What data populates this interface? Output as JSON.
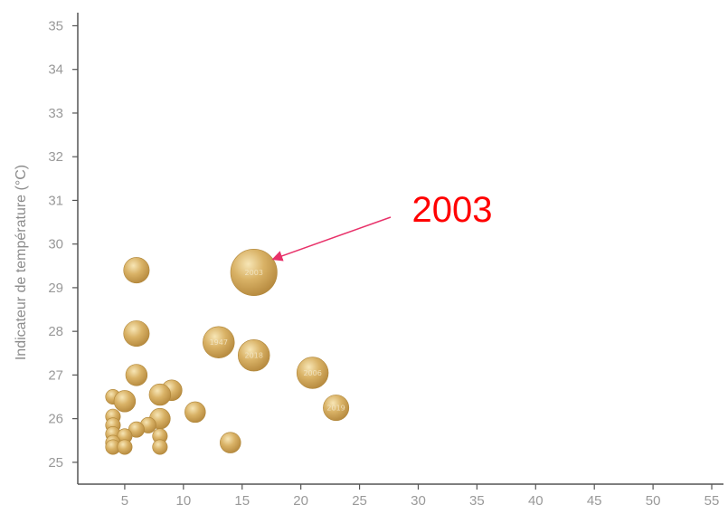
{
  "chart_data": {
    "type": "scatter",
    "variant": "bubble",
    "ylabel": "Indicateur de température (°C)",
    "xlabel": "",
    "xlim": [
      1,
      56
    ],
    "ylim": [
      24.5,
      35.3
    ],
    "xticks": [
      "5",
      "10",
      "15",
      "20",
      "25",
      "30",
      "35",
      "40",
      "45",
      "50",
      "55"
    ],
    "yticks": [
      "25",
      "26",
      "27",
      "28",
      "29",
      "30",
      "31",
      "32",
      "33",
      "34",
      "35"
    ],
    "grid": false,
    "bubble_color": "#c9a04e",
    "points": [
      {
        "x": 6.0,
        "y": 29.4,
        "size": 2.0,
        "label": ""
      },
      {
        "x": 16.0,
        "y": 29.35,
        "size": 4.5,
        "label": "2003"
      },
      {
        "x": 6.0,
        "y": 27.95,
        "size": 2.0,
        "label": ""
      },
      {
        "x": 13.0,
        "y": 27.75,
        "size": 2.7,
        "label": "1947"
      },
      {
        "x": 16.0,
        "y": 27.45,
        "size": 2.7,
        "label": "2018"
      },
      {
        "x": 21.0,
        "y": 27.05,
        "size": 2.7,
        "label": "2006"
      },
      {
        "x": 6.0,
        "y": 27.0,
        "size": 1.5,
        "label": ""
      },
      {
        "x": 9.0,
        "y": 26.65,
        "size": 1.4,
        "label": ""
      },
      {
        "x": 8.0,
        "y": 26.55,
        "size": 1.5,
        "label": ""
      },
      {
        "x": 4.0,
        "y": 26.5,
        "size": 0.7,
        "label": ""
      },
      {
        "x": 5.0,
        "y": 26.4,
        "size": 1.5,
        "label": ""
      },
      {
        "x": 23.0,
        "y": 26.25,
        "size": 2.0,
        "label": "2019"
      },
      {
        "x": 11.0,
        "y": 26.15,
        "size": 1.4,
        "label": ""
      },
      {
        "x": 4.0,
        "y": 26.05,
        "size": 0.7,
        "label": ""
      },
      {
        "x": 8.0,
        "y": 26.0,
        "size": 1.4,
        "label": ""
      },
      {
        "x": 4.0,
        "y": 25.85,
        "size": 0.7,
        "label": ""
      },
      {
        "x": 7.0,
        "y": 25.85,
        "size": 0.8,
        "label": ""
      },
      {
        "x": 6.0,
        "y": 25.75,
        "size": 0.8,
        "label": ""
      },
      {
        "x": 4.0,
        "y": 25.65,
        "size": 0.7,
        "label": ""
      },
      {
        "x": 5.0,
        "y": 25.6,
        "size": 0.7,
        "label": ""
      },
      {
        "x": 8.0,
        "y": 25.6,
        "size": 0.7,
        "label": ""
      },
      {
        "x": 4.0,
        "y": 25.45,
        "size": 0.7,
        "label": ""
      },
      {
        "x": 14.0,
        "y": 25.45,
        "size": 1.4,
        "label": ""
      },
      {
        "x": 4.0,
        "y": 25.35,
        "size": 0.7,
        "label": ""
      },
      {
        "x": 5.0,
        "y": 25.35,
        "size": 0.7,
        "label": ""
      },
      {
        "x": 8.0,
        "y": 25.35,
        "size": 0.7,
        "label": ""
      }
    ],
    "annotation": {
      "text": "2003",
      "color": "#ff0000",
      "arrow_color": "#e8326a",
      "target": {
        "x": 17.6,
        "y": 29.65
      }
    }
  }
}
